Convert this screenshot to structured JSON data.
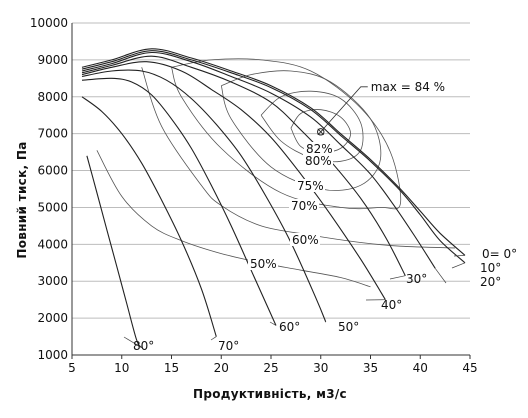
{
  "chart_data": {
    "type": "line",
    "title": "",
    "xlabel": "Продуктивність, м3/с",
    "ylabel": "Повний тиск, Па",
    "xlim": [
      5,
      45
    ],
    "ylim": [
      1000,
      10000
    ],
    "xticks": [
      "5",
      "10",
      "15",
      "20",
      "25",
      "30",
      "35",
      "40",
      "45"
    ],
    "yticks": [
      "1000",
      "2000",
      "3000",
      "4000",
      "5000",
      "6000",
      "7000",
      "8000",
      "9000",
      "10000"
    ],
    "grid": "horizontal",
    "colors": {
      "line": "#222222",
      "grid": "#bdbdbd",
      "efficiency": "#555555"
    },
    "max_point": {
      "label": "max = 84 %",
      "x": 30,
      "y": 7050
    },
    "blade_angle_curves": [
      {
        "name": "0= 0°",
        "x": [
          6,
          9,
          13,
          17,
          21,
          25,
          29,
          32,
          35,
          38,
          40,
          42,
          44.5
        ],
        "y": [
          8800,
          9000,
          9300,
          9050,
          8700,
          8300,
          7700,
          7000,
          6300,
          5500,
          4900,
          4300,
          3700
        ]
      },
      {
        "name": "10°",
        "x": [
          6,
          9,
          13,
          17,
          21,
          25,
          29,
          32,
          35,
          38,
          40,
          42,
          44.5
        ],
        "y": [
          8750,
          8950,
          9250,
          9000,
          8650,
          8250,
          7650,
          6950,
          6250,
          5450,
          4800,
          4100,
          3500
        ]
      },
      {
        "name": "20°",
        "x": [
          6,
          9,
          13,
          17,
          21,
          25,
          29,
          32,
          35,
          37.5,
          39.5,
          41.5
        ],
        "y": [
          8700,
          8900,
          9200,
          8950,
          8550,
          8100,
          7450,
          6700,
          5900,
          5000,
          4200,
          3350
        ]
      },
      {
        "name": "30°",
        "x": [
          6,
          9,
          13,
          17,
          21,
          25,
          28,
          31,
          34,
          36.5,
          38.5
        ],
        "y": [
          8650,
          8850,
          9100,
          8800,
          8400,
          7850,
          7100,
          6250,
          5250,
          4200,
          3150
        ]
      },
      {
        "name": "40°",
        "x": [
          6,
          9,
          12.5,
          16,
          19,
          22,
          25,
          28,
          31,
          34,
          36.5
        ],
        "y": [
          8600,
          8800,
          8950,
          8700,
          8200,
          7650,
          6900,
          5900,
          4800,
          3600,
          2500
        ]
      },
      {
        "name": "50°",
        "x": [
          6,
          9,
          12,
          14.5,
          17,
          19.5,
          22,
          24.5,
          27,
          29.5,
          30.5
        ],
        "y": [
          8550,
          8700,
          8700,
          8450,
          7950,
          7250,
          6400,
          5300,
          4050,
          2550,
          1900
        ]
      },
      {
        "name": "60°",
        "x": [
          6,
          9,
          11,
          13,
          15,
          17,
          19,
          21,
          23,
          25,
          25.5
        ],
        "y": [
          8450,
          8500,
          8400,
          8050,
          7400,
          6600,
          5600,
          4500,
          3300,
          2100,
          1800
        ]
      },
      {
        "name": "70°",
        "x": [
          6,
          8,
          10,
          12,
          14,
          16,
          18,
          19.5
        ],
        "y": [
          8000,
          7600,
          7000,
          6200,
          5200,
          4100,
          2800,
          1500
        ]
      },
      {
        "name": "80°",
        "x": [
          6.5,
          7.5,
          8.5,
          9.5,
          10.5,
          11.5,
          12
        ],
        "y": [
          6400,
          5400,
          4400,
          3400,
          2400,
          1400,
          1200
        ]
      }
    ],
    "efficiency_curves": [
      {
        "name": "82%",
        "x": [
          27,
          28,
          30,
          32,
          33,
          32,
          30,
          28,
          27
        ],
        "y": [
          7150,
          7550,
          7650,
          7450,
          7000,
          6600,
          6500,
          6650,
          7150
        ]
      },
      {
        "name": "80%",
        "x": [
          24,
          26,
          29,
          32,
          34,
          34,
          32,
          29,
          26,
          24
        ],
        "y": [
          7500,
          8000,
          8150,
          7950,
          7300,
          6550,
          6250,
          6350,
          6800,
          7500
        ]
      },
      {
        "name": "75%",
        "x": [
          20,
          23,
          27,
          31,
          35,
          36,
          34,
          30,
          25,
          21,
          20
        ],
        "y": [
          8300,
          8600,
          8700,
          8400,
          7400,
          6300,
          5600,
          5500,
          6100,
          7400,
          8300
        ]
      },
      {
        "name": "70%",
        "x": [
          15,
          19,
          24,
          29,
          34,
          37,
          38,
          36,
          32,
          26,
          20,
          16,
          15
        ],
        "y": [
          8800,
          9000,
          9000,
          8700,
          7700,
          6500,
          5100,
          5000,
          5000,
          5400,
          6600,
          8000,
          8800
        ]
      },
      {
        "name": "60%",
        "x": [
          12,
          14,
          18,
          20,
          24,
          29,
          34,
          38,
          43.5
        ],
        "y": [
          8800,
          7200,
          5600,
          5050,
          4500,
          4250,
          4050,
          3950,
          3900
        ]
      },
      {
        "name": "50%",
        "x": [
          7.5,
          10,
          13,
          16,
          20,
          24,
          28,
          32,
          35
        ],
        "y": [
          6550,
          5300,
          4500,
          4100,
          3750,
          3500,
          3300,
          3100,
          2850
        ]
      }
    ]
  }
}
